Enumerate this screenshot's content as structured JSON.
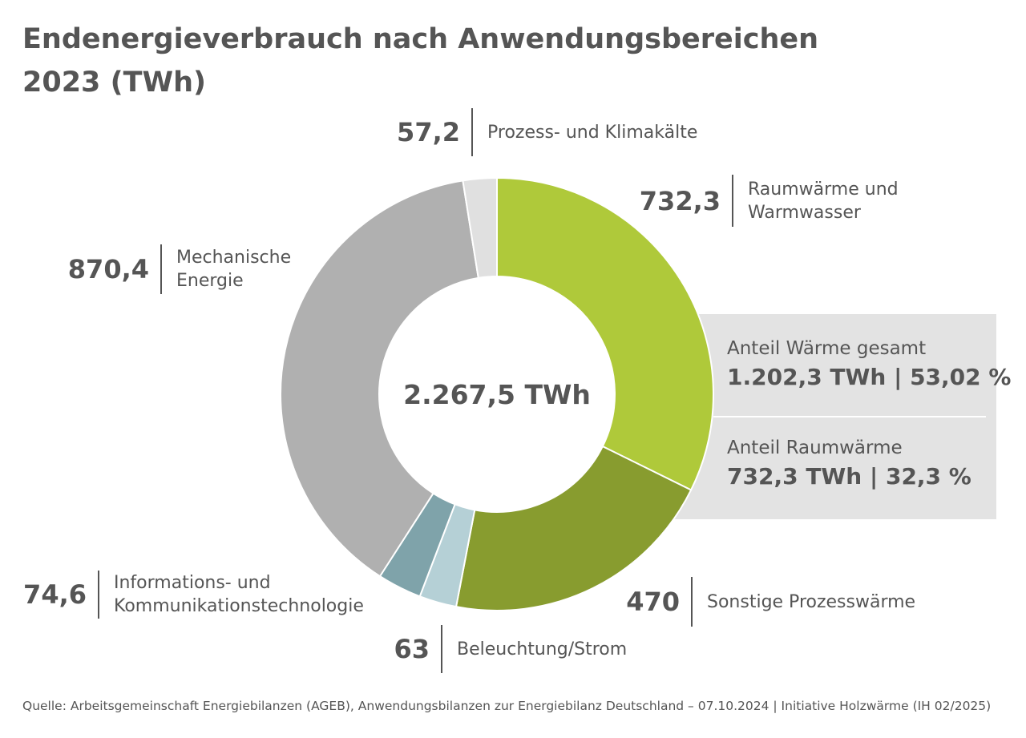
{
  "chart_data": {
    "type": "donut",
    "title": "Endenergieverbrauch nach Anwendungsbereichen 2023 (TWh)",
    "categories": [
      "Raumwärme und Warmwasser",
      "Sonstige Prozesswärme",
      "Beleuchtung/Strom",
      "Informations- und Kommunikationstechnologie",
      "Mechanische Energie",
      "Prozess- und Klimakälte"
    ],
    "values": [
      732.3,
      470,
      63,
      74.6,
      870.4,
      57.2
    ],
    "value_labels": [
      "732,3",
      "470",
      "63",
      "74,6",
      "870,4",
      "57,2"
    ],
    "colors": [
      "#afc93a",
      "#889c2f",
      "#b5d0d6",
      "#7fa3aa",
      "#b0b0b0",
      "#e0e0e0"
    ],
    "center_label": "2.267,5 TWh",
    "info_box": [
      {
        "title": "Anteil Wärme gesamt",
        "value": "1.202,3 TWh | 53,02 %"
      },
      {
        "title": "Anteil Raumwärme",
        "value": "732,3 TWh | 32,3 %"
      }
    ],
    "source": "Quelle: Arbeitsgemeinschaft Energiebilanzen (AGEB), Anwendungsbilanzen zur Energiebilanz Deutschland – 07.10.2024 | Initiative Holzwärme (IH 02/2025)"
  }
}
